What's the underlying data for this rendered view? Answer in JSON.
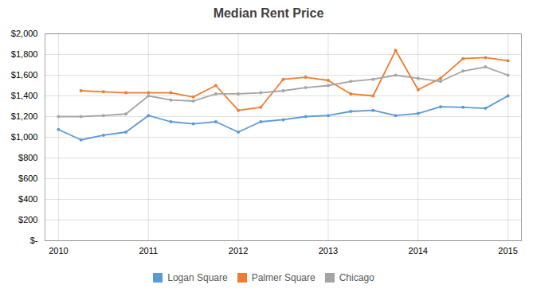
{
  "chart_data": {
    "type": "line",
    "title": "Median Rent Price",
    "x": [
      2010,
      2010.25,
      2010.5,
      2010.75,
      2011,
      2011.25,
      2011.5,
      2011.75,
      2012,
      2012.25,
      2012.5,
      2012.75,
      2013,
      2013.25,
      2013.5,
      2013.75,
      2014,
      2014.25,
      2014.5,
      2014.75,
      2015
    ],
    "series": [
      {
        "name": "Logan Square",
        "color": "#5b9bd5",
        "marker": "circle",
        "values": [
          1075,
          975,
          1020,
          1050,
          1210,
          1150,
          1130,
          1150,
          1050,
          1150,
          1170,
          1200,
          1210,
          1250,
          1260,
          1210,
          1230,
          1295,
          1290,
          1280,
          1400
        ]
      },
      {
        "name": "Palmer Square",
        "color": "#ed7d31",
        "marker": "circle",
        "values": [
          null,
          1450,
          1440,
          1430,
          1430,
          1430,
          1390,
          1500,
          1260,
          1290,
          1560,
          1580,
          1550,
          1420,
          1400,
          1840,
          1460,
          1570,
          1760,
          1770,
          1740
        ]
      },
      {
        "name": "Chicago",
        "color": "#a5a5a5",
        "marker": "circle",
        "values": [
          1200,
          1200,
          1210,
          1225,
          1400,
          1360,
          1350,
          1420,
          1420,
          1430,
          1450,
          1480,
          1500,
          1540,
          1560,
          1600,
          1570,
          1540,
          1640,
          1680,
          1600
        ]
      }
    ],
    "xlim": [
      2009.85,
      2015.15
    ],
    "xticks": [
      2010,
      2011,
      2012,
      2013,
      2014,
      2015
    ],
    "ylim": [
      0,
      2000
    ],
    "yticks": [
      {
        "value": 0,
        "label": "$-"
      },
      {
        "value": 200,
        "label": "$200"
      },
      {
        "value": 400,
        "label": "$400"
      },
      {
        "value": 600,
        "label": "$600"
      },
      {
        "value": 800,
        "label": "$800"
      },
      {
        "value": 1000,
        "label": "$1,000"
      },
      {
        "value": 1200,
        "label": "$1,200"
      },
      {
        "value": 1400,
        "label": "$1,400"
      },
      {
        "value": 1600,
        "label": "$1,600"
      },
      {
        "value": 1800,
        "label": "$1,800"
      },
      {
        "value": 2000,
        "label": "$2,000"
      }
    ],
    "grid": true,
    "legend": "bottom"
  }
}
